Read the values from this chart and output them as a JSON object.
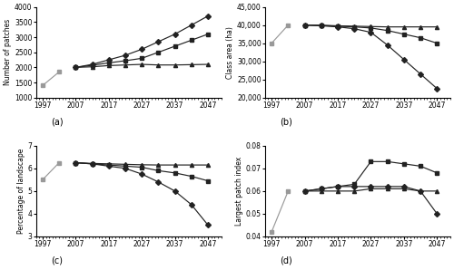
{
  "years": [
    1997,
    2002,
    2007,
    2012,
    2017,
    2022,
    2027,
    2032,
    2037,
    2042,
    2047
  ],
  "panel_a": {
    "ylabel": "Number of patches",
    "ylim": [
      1000,
      4000
    ],
    "yticks": [
      1000,
      1500,
      2000,
      2500,
      3000,
      3500,
      4000
    ],
    "historical": [
      1400,
      1850,
      null,
      null,
      null,
      null,
      null,
      null,
      null,
      null,
      null
    ],
    "diamond": [
      null,
      null,
      2000,
      2100,
      2250,
      2400,
      2600,
      2850,
      3100,
      3400,
      3700
    ],
    "square": [
      null,
      null,
      2000,
      2070,
      2150,
      2220,
      2300,
      2500,
      2700,
      2900,
      3100
    ],
    "triangle": [
      null,
      null,
      2000,
      2020,
      2060,
      2080,
      2100,
      2080,
      2080,
      2090,
      2100
    ]
  },
  "panel_b": {
    "ylabel": "Class area (ha)",
    "ylim": [
      20000,
      45000
    ],
    "yticks": [
      20000,
      25000,
      30000,
      35000,
      40000,
      45000
    ],
    "historical": [
      35000,
      40000,
      null,
      null,
      null,
      null,
      null,
      null,
      null,
      null,
      null
    ],
    "diamond": [
      null,
      null,
      40000,
      39800,
      39500,
      39000,
      38000,
      34500,
      30500,
      26500,
      22500
    ],
    "square": [
      null,
      null,
      40000,
      39900,
      39700,
      39500,
      39200,
      38500,
      37500,
      36500,
      35000
    ],
    "triangle": [
      null,
      null,
      40000,
      39950,
      39800,
      39700,
      39600,
      39500,
      39500,
      39500,
      39500
    ]
  },
  "panel_c": {
    "ylabel": "Percentage of landscape",
    "ylim": [
      3,
      7
    ],
    "yticks": [
      3,
      4,
      5,
      6,
      7
    ],
    "historical": [
      5.5,
      6.25,
      null,
      null,
      null,
      null,
      null,
      null,
      null,
      null,
      null
    ],
    "diamond": [
      null,
      null,
      6.25,
      6.2,
      6.1,
      6.0,
      5.75,
      5.4,
      5.0,
      4.4,
      3.5
    ],
    "square": [
      null,
      null,
      6.25,
      6.2,
      6.15,
      6.1,
      6.05,
      5.9,
      5.8,
      5.65,
      5.45
    ],
    "triangle": [
      null,
      null,
      6.25,
      6.22,
      6.2,
      6.18,
      6.16,
      6.15,
      6.15,
      6.15,
      6.15
    ]
  },
  "panel_d": {
    "ylabel": "Largest patch index",
    "ylim": [
      0.04,
      0.08
    ],
    "yticks": [
      0.04,
      0.05,
      0.06,
      0.07,
      0.08
    ],
    "historical": [
      0.042,
      0.06,
      null,
      null,
      null,
      null,
      null,
      null,
      null,
      null,
      null
    ],
    "square": [
      null,
      null,
      0.06,
      0.061,
      0.062,
      0.063,
      0.073,
      0.073,
      0.072,
      0.071,
      0.068
    ],
    "diamond": [
      null,
      null,
      0.06,
      0.061,
      0.062,
      0.062,
      0.062,
      0.062,
      0.062,
      0.06,
      0.05
    ],
    "triangle": [
      null,
      null,
      0.06,
      0.06,
      0.06,
      0.06,
      0.061,
      0.061,
      0.061,
      0.06,
      0.06
    ]
  },
  "xticks": [
    1997,
    2007,
    2017,
    2027,
    2037,
    2047
  ],
  "panel_labels": [
    "(a)",
    "(b)",
    "(c)",
    "(d)"
  ],
  "hist_color": "#999999",
  "line_color": "#222222"
}
